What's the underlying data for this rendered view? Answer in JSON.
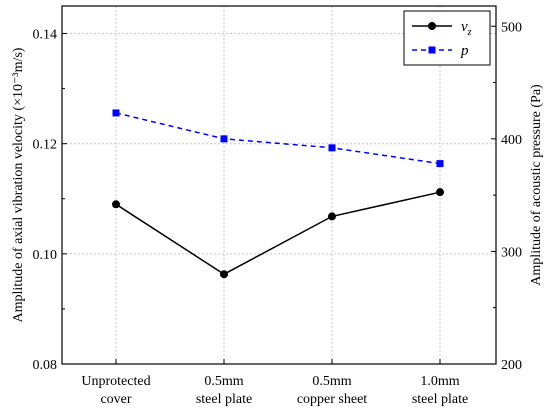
{
  "chart_data": {
    "type": "line",
    "categories": [
      [
        "Unprotected",
        "cover"
      ],
      [
        "0.5mm",
        "steel plate"
      ],
      [
        "0.5mm",
        "copper sheet"
      ],
      [
        "1.0mm",
        "steel plate"
      ]
    ],
    "ylabel_left": "Amplitude of axial vibration velocity (×10⁻³m/s)",
    "ylabel_right": "Amplitude of acoustic pressure (Pa)",
    "ylim_left": [
      0.08,
      0.145
    ],
    "yticks_left": [
      0.08,
      0.1,
      0.12,
      0.14
    ],
    "ytick_labels_left": [
      "0.08",
      "0.10",
      "0.12",
      "0.14"
    ],
    "ylim_right": [
      200,
      518
    ],
    "yticks_right": [
      200,
      300,
      400,
      500
    ],
    "ytick_labels_right": [
      "200",
      "300",
      "400",
      "500"
    ],
    "grid": true,
    "legend_position": "top-right",
    "series": [
      {
        "name": "v",
        "name_sub": "z",
        "axis": "left",
        "values": [
          0.109,
          0.0963,
          0.1068,
          0.1112
        ],
        "color": "#000000",
        "line_style": "solid",
        "marker": "circle"
      },
      {
        "name": "p",
        "axis": "right",
        "values": [
          423,
          400,
          392,
          378
        ],
        "color": "#0000ff",
        "line_style": "dashed",
        "marker": "square"
      }
    ]
  }
}
